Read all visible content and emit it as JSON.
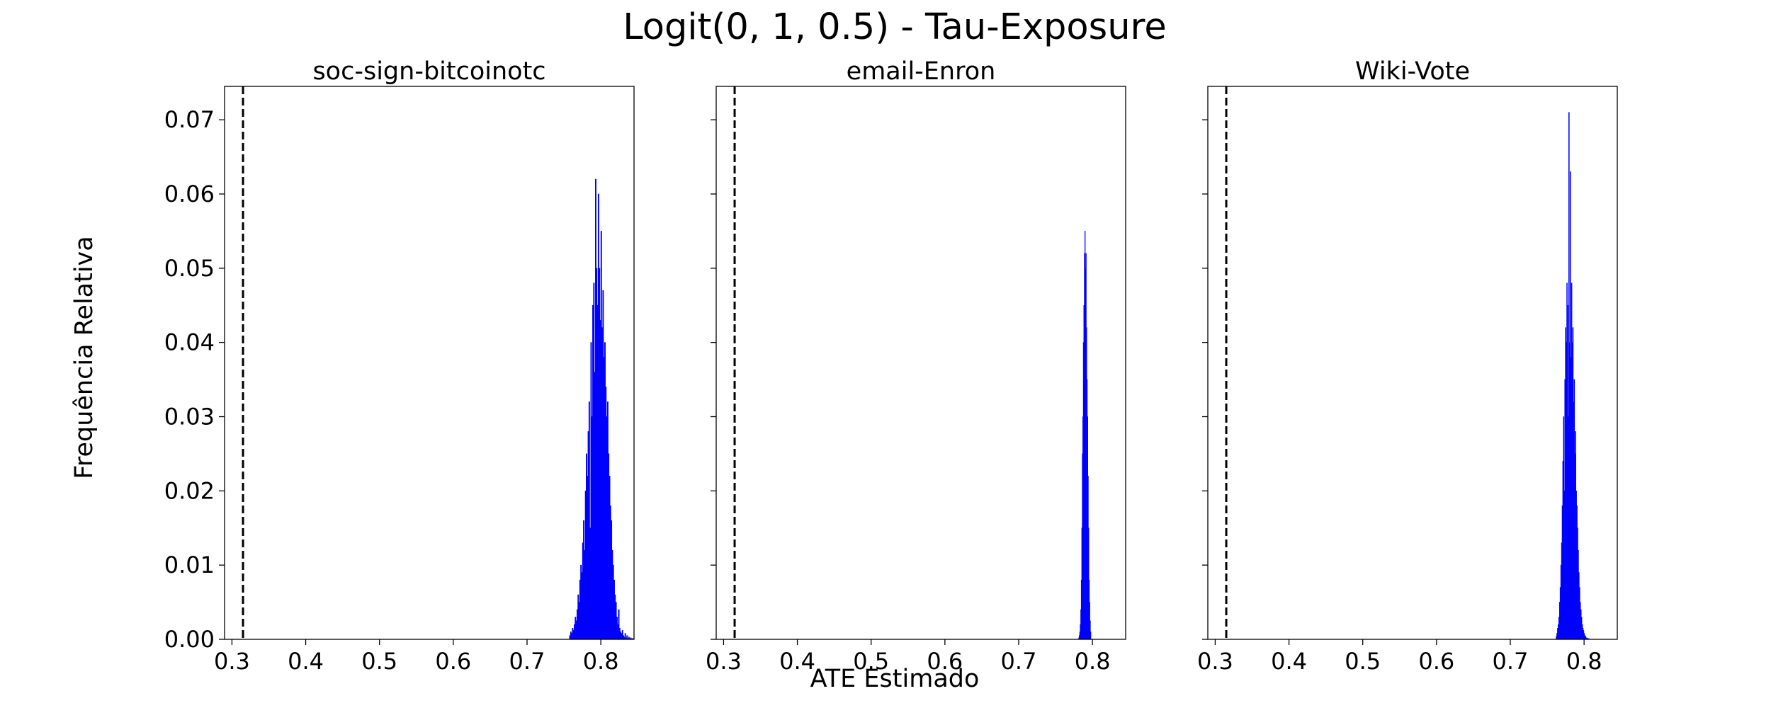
{
  "figure": {
    "title": "Logit(0, 1, 0.5) - Tau-Exposure",
    "xlabel": "ATE Estimado",
    "ylabel": "Frequência Relativa"
  },
  "chart_data": [
    {
      "type": "histogram",
      "title": "soc-sign-bitcoinotc",
      "xlim": [
        0.29,
        0.845
      ],
      "ylim": [
        0,
        0.0745
      ],
      "xticks": [
        0.3,
        0.4,
        0.5,
        0.6,
        0.7,
        0.8
      ],
      "yticks": [
        0.0,
        0.01,
        0.02,
        0.03,
        0.04,
        0.05,
        0.06,
        0.07
      ],
      "show_ytick_labels": true,
      "reference_line": 0.315,
      "bar_color": "#0000ff",
      "bin_width": 0.00125,
      "x_start": 0.7575,
      "values": [
        0.0005,
        0.001,
        0.0008,
        0.0015,
        0.0012,
        0.002,
        0.003,
        0.0025,
        0.004,
        0.006,
        0.005,
        0.008,
        0.01,
        0.009,
        0.013,
        0.016,
        0.012,
        0.02,
        0.025,
        0.022,
        0.028,
        0.032,
        0.015,
        0.04,
        0.03,
        0.045,
        0.048,
        0.036,
        0.062,
        0.05,
        0.045,
        0.06,
        0.05,
        0.043,
        0.055,
        0.042,
        0.047,
        0.038,
        0.04,
        0.034,
        0.03,
        0.032,
        0.025,
        0.022,
        0.018,
        0.016,
        0.012,
        0.01,
        0.008,
        0.006,
        0.005,
        0.003,
        0.002,
        0.004,
        0.0015,
        0.001,
        0.0008,
        0.0012,
        0.0005,
        0.0003,
        0.0008,
        0.0002,
        0.0005,
        0.0001,
        0.0003,
        0.0001,
        0.0002,
        0.0001,
        0.0001,
        0.0001
      ]
    },
    {
      "type": "histogram",
      "title": "email-Enron",
      "xlim": [
        0.29,
        0.845
      ],
      "ylim": [
        0,
        0.0745
      ],
      "xticks": [
        0.3,
        0.4,
        0.5,
        0.6,
        0.7,
        0.8
      ],
      "yticks": [
        0.0,
        0.01,
        0.02,
        0.03,
        0.04,
        0.05,
        0.06,
        0.07
      ],
      "show_ytick_labels": false,
      "reference_line": 0.315,
      "bar_color": "#0000ff",
      "bin_width": 0.0007,
      "x_start": 0.7812,
      "values": [
        0.0002,
        0.0005,
        0.001,
        0.002,
        0.004,
        0.008,
        0.015,
        0.025,
        0.03,
        0.04,
        0.045,
        0.052,
        0.055,
        0.05,
        0.052,
        0.042,
        0.035,
        0.03,
        0.022,
        0.015,
        0.008,
        0.005,
        0.0025,
        0.001
      ]
    },
    {
      "type": "histogram",
      "title": "Wiki-Vote",
      "xlim": [
        0.29,
        0.845
      ],
      "ylim": [
        0,
        0.0745
      ],
      "xticks": [
        0.3,
        0.4,
        0.5,
        0.6,
        0.7,
        0.8
      ],
      "yticks": [
        0.0,
        0.01,
        0.02,
        0.03,
        0.04,
        0.05,
        0.06,
        0.07
      ],
      "show_ytick_labels": false,
      "reference_line": 0.315,
      "bar_color": "#0000ff",
      "bin_width": 0.0009,
      "x_start": 0.762,
      "values": [
        0.0004,
        0.0008,
        0.0015,
        0.002,
        0.003,
        0.005,
        0.007,
        0.01,
        0.013,
        0.018,
        0.024,
        0.03,
        0.02,
        0.035,
        0.042,
        0.04,
        0.048,
        0.045,
        0.03,
        0.071,
        0.04,
        0.063,
        0.038,
        0.048,
        0.04,
        0.042,
        0.032,
        0.035,
        0.025,
        0.028,
        0.02,
        0.018,
        0.015,
        0.012,
        0.009,
        0.007,
        0.005,
        0.004,
        0.003,
        0.002,
        0.0015,
        0.0012,
        0.0008,
        0.0005,
        0.0004,
        0.0002,
        0.0002,
        0.0001,
        0.0001,
        0.0001
      ]
    }
  ]
}
